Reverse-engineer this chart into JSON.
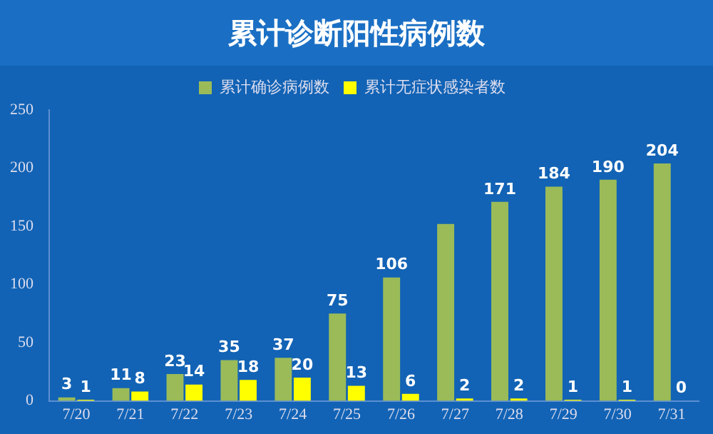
{
  "chart_data": {
    "type": "bar",
    "title": "累计诊断阳性病例数",
    "categories": [
      "7/20",
      "7/21",
      "7/22",
      "7/23",
      "7/24",
      "7/25",
      "7/26",
      "7/27",
      "7/28",
      "7/29",
      "7/30",
      "7/31"
    ],
    "series": [
      {
        "name": "累计确诊病例数",
        "color": "#9bbb59",
        "values": [
          3,
          11,
          23,
          35,
          37,
          75,
          106,
          152,
          171,
          184,
          190,
          204
        ],
        "value_labels": [
          "3",
          "11",
          "23",
          "35",
          "37",
          "75",
          "106",
          null,
          "171",
          "184",
          "190",
          "204"
        ]
      },
      {
        "name": "累计无症状感染者数",
        "color": "#ffff00",
        "values": [
          1,
          8,
          14,
          18,
          20,
          13,
          6,
          2,
          2,
          1,
          1,
          0
        ],
        "value_labels": [
          "1",
          "8",
          "14",
          "18",
          "20",
          "13",
          "6",
          "2",
          "2",
          "1",
          "1",
          "0"
        ]
      }
    ],
    "ylim": [
      0,
      250
    ],
    "yticks": [
      0,
      50,
      100,
      150,
      200,
      250
    ],
    "grid": false,
    "legend": "top"
  }
}
